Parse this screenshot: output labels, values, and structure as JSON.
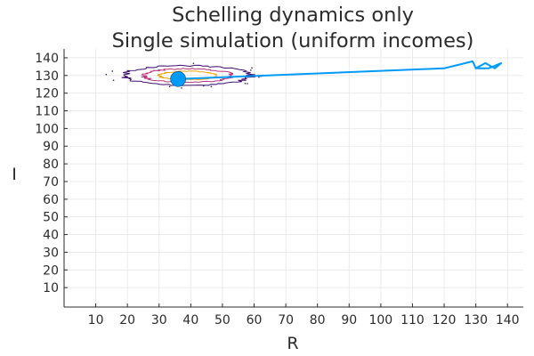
{
  "chart_data": {
    "type": "line",
    "title": "Schelling dynamics only",
    "subtitle": "Single simulation (uniform incomes)",
    "xlabel": "R",
    "ylabel": "I",
    "xlim": [
      0,
      145
    ],
    "ylim": [
      -1,
      145
    ],
    "xticks": [
      10,
      20,
      30,
      40,
      50,
      60,
      70,
      80,
      90,
      100,
      110,
      120,
      130,
      140
    ],
    "yticks": [
      10,
      20,
      30,
      40,
      50,
      60,
      70,
      80,
      90,
      100,
      110,
      120,
      130,
      140
    ],
    "grid": true,
    "legend": "none",
    "series": [
      {
        "color": "#009af9",
        "x": [
          36,
          120,
          129,
          130,
          133,
          135,
          136,
          138,
          134,
          130
        ],
        "y": [
          128,
          134,
          138,
          134,
          137,
          135,
          134,
          137,
          134,
          134
        ]
      }
    ],
    "start_marker": {
      "x": 36,
      "y": 128,
      "color": "#009af9"
    },
    "contour": {
      "center": {
        "x": 39,
        "y": 130
      },
      "levels": [
        {
          "color": "#3b0f70",
          "rx": 20,
          "ry": 5.5
        },
        {
          "color": "#b5367a",
          "rx": 14,
          "ry": 3.8
        },
        {
          "color": "#f0a20a",
          "rx": 9,
          "ry": 2.4
        }
      ]
    }
  }
}
